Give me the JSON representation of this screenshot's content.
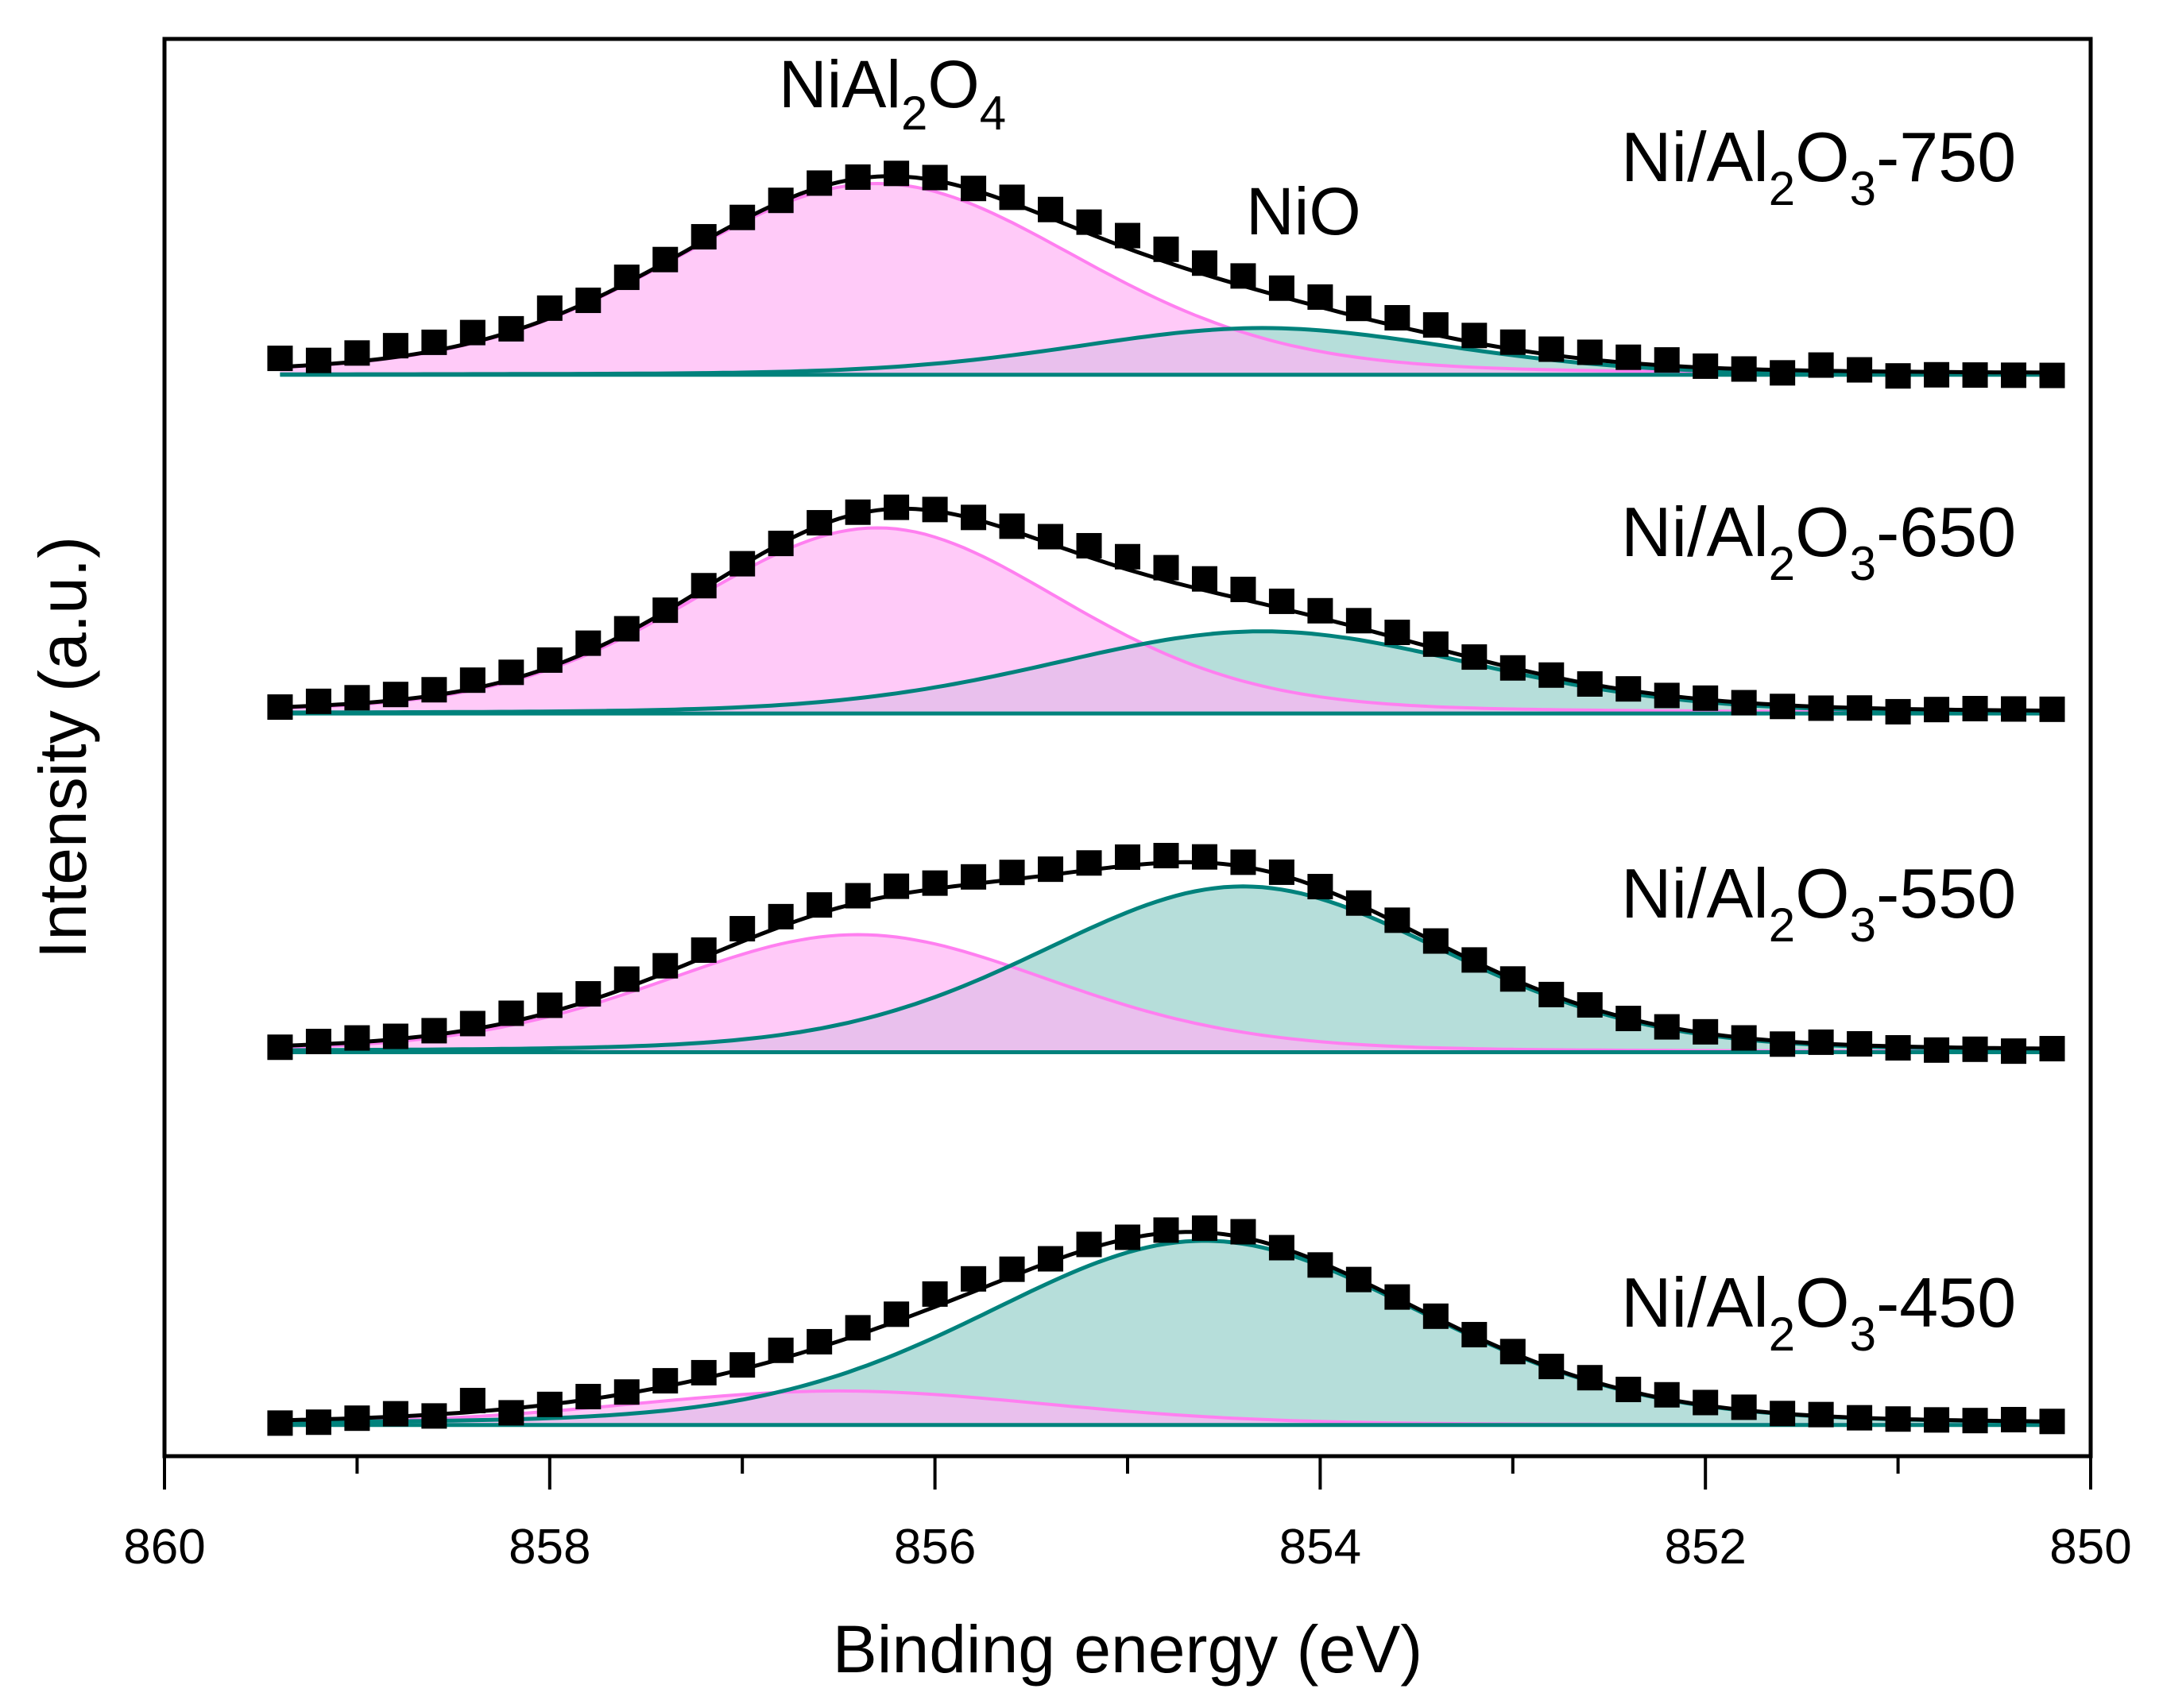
{
  "chart_data": {
    "type": "scatter",
    "title": "",
    "xlabel": "Binding energy (eV)",
    "ylabel": "Intensity (a.u.)",
    "xlim": [
      860,
      850
    ],
    "ylim": [
      0,
      100
    ],
    "x_ticks": [
      "860",
      "858",
      "856",
      "854",
      "852",
      "850"
    ],
    "x_tick_values": [
      860,
      858,
      856,
      854,
      852,
      850
    ],
    "x_minor_ticks": [
      859,
      857,
      855,
      853,
      851
    ],
    "grid": false,
    "colors": {
      "points": "#000000",
      "envelope": "#000000",
      "nial2o4_line": "#ff7ff0",
      "nial2o4_fill": "#ffb3f5",
      "nio_line": "#00827c",
      "nio_fill": "#8fcdc6"
    },
    "peak_labels": [
      {
        "name": "NiAl2O4",
        "parts": [
          "NiAl",
          "2",
          "O",
          "4"
        ]
      },
      {
        "name": "NiO",
        "parts": [
          "NiO"
        ]
      }
    ],
    "x_points": {
      "start": 859.4,
      "end": 850.2,
      "step": 0.2
    },
    "series": [
      {
        "name": "Ni/Al2O3-750",
        "label_parts": [
          "Ni/Al",
          "2",
          "O",
          "3",
          "-750"
        ],
        "baseline": 76.3,
        "components": [
          {
            "name": "NiAl2O4",
            "center": 856.3,
            "height": 13.5,
            "fwhm": 2.5
          },
          {
            "name": "NiO",
            "center": 854.3,
            "height": 3.3,
            "fwhm": 2.3
          }
        ],
        "residuals": [
          0.6,
          0.3,
          0.6,
          0.8,
          0.6,
          0.7,
          0.2,
          0.7,
          0.1,
          0.4,
          0.2,
          0.3,
          0.2,
          0.1,
          0.3,
          0.1,
          0.2,
          0.2,
          0.1,
          0.4,
          0.6,
          0.8,
          0.9,
          0.9,
          0.8,
          0.7,
          0.6,
          0.7,
          0.6,
          0.6,
          0.7,
          0.5,
          0.5,
          0.4,
          0.5,
          0.4,
          0.4,
          0.1,
          0.0,
          -0.2,
          0.4,
          0.1,
          -0.3,
          -0.2,
          -0.2,
          -0.2,
          -0.2
        ]
      },
      {
        "name": "Ni/Al2O3-650",
        "label_parts": [
          "Ni/Al",
          "2",
          "O",
          "3",
          "-650"
        ],
        "baseline": 52.4,
        "components": [
          {
            "name": "NiAl2O4",
            "center": 856.3,
            "height": 13.1,
            "fwhm": 2.3
          },
          {
            "name": "NiO",
            "center": 854.3,
            "height": 5.8,
            "fwhm": 2.6
          }
        ],
        "residuals": [
          0.0,
          0.3,
          0.4,
          0.4,
          0.4,
          0.6,
          0.5,
          0.5,
          0.6,
          0.3,
          0.1,
          0.2,
          0.1,
          0.0,
          0.2,
          0.1,
          0.1,
          0.1,
          0.1,
          0.3,
          0.5,
          0.8,
          0.9,
          0.9,
          0.8,
          0.7,
          0.5,
          0.5,
          0.5,
          0.4,
          0.3,
          0.1,
          0.0,
          0.1,
          0.0,
          0.1,
          0.0,
          0.1,
          0.0,
          -0.1,
          -0.1,
          0.0,
          -0.2,
          0.0,
          0.1,
          0.1,
          0.1
        ]
      },
      {
        "name": "Ni/Al2O3-550",
        "label_parts": [
          "Ni/Al",
          "2",
          "O",
          "3",
          "-550"
        ],
        "baseline": 28.5,
        "components": [
          {
            "name": "NiAl2O4",
            "center": 856.4,
            "height": 8.3,
            "fwhm": 2.4
          },
          {
            "name": "NiO",
            "center": 854.4,
            "height": 11.7,
            "fwhm": 2.5
          }
        ],
        "residuals": [
          -0.1,
          0.2,
          0.3,
          0.2,
          0.3,
          0.4,
          0.6,
          0.5,
          0.5,
          0.6,
          0.5,
          0.5,
          0.9,
          0.7,
          0.6,
          0.5,
          0.6,
          0.4,
          0.5,
          0.5,
          0.4,
          0.5,
          0.6,
          0.5,
          0.4,
          0.3,
          0.2,
          0.1,
          0.1,
          0.2,
          0.1,
          0.1,
          0.0,
          0.0,
          0.2,
          0.0,
          0.0,
          0.1,
          0.0,
          -0.2,
          0.1,
          0.1,
          -0.1,
          -0.2,
          -0.1,
          -0.2,
          0.0
        ]
      },
      {
        "name": "Ni/Al2O3-450",
        "label_parts": [
          "Ni/Al",
          "2",
          "O",
          "3",
          "-450"
        ],
        "baseline": 2.2,
        "components": [
          {
            "name": "NiAl2O4",
            "center": 856.5,
            "height": 2.4,
            "fwhm": 2.6
          },
          {
            "name": "NiO",
            "center": 854.6,
            "height": 13.0,
            "fwhm": 2.7
          }
        ],
        "residuals": [
          -0.2,
          -0.2,
          0.0,
          0.2,
          -0.1,
          0.8,
          -0.3,
          0.0,
          0.2,
          0.1,
          0.4,
          0.4,
          0.3,
          0.6,
          0.4,
          0.5,
          0.5,
          0.9,
          0.9,
          0.5,
          0.2,
          0.3,
          0.1,
          0.2,
          0.3,
          0.4,
          0.0,
          -0.2,
          0.0,
          0.1,
          0.1,
          0.1,
          0.1,
          0.1,
          0.2,
          0.1,
          0.3,
          0.2,
          0.2,
          0.0,
          0.1,
          0.0,
          0.0,
          0.0,
          0.0,
          0.1,
          0.0
        ]
      }
    ]
  }
}
